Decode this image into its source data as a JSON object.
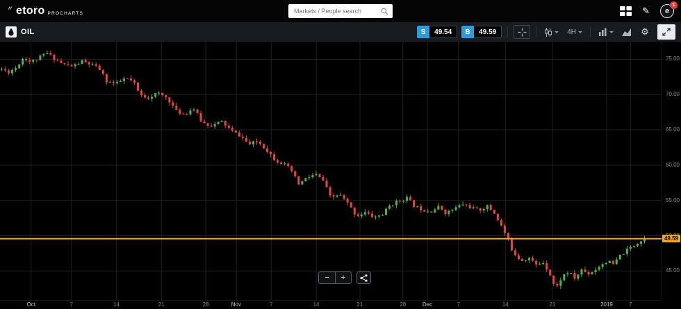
{
  "topbar": {
    "logo": "etoro",
    "logo_sub": "PROCHARTS",
    "search_placeholder": "Markets / People search",
    "notification_count": "1",
    "logo_mark": "e",
    "pencil_glyph": "✎"
  },
  "toolbar": {
    "symbol": "OIL",
    "sell_label": "S",
    "sell_price": "49.54",
    "buy_label": "B",
    "buy_price": "49.59",
    "interval": "4H",
    "gear_glyph": "⚙"
  },
  "zoom_controls": {
    "minus_label": "−",
    "plus_label": "+"
  },
  "chart_data": {
    "type": "candlestick",
    "symbol": "OIL",
    "interval": "4H",
    "ylim": [
      40.9,
      77.5
    ],
    "grid": true,
    "y_ticks": [
      {
        "p": 75,
        "label": "75.00"
      },
      {
        "p": 70,
        "label": "70.00"
      },
      {
        "p": 65,
        "label": "65.00"
      },
      {
        "p": 60,
        "label": "60.00"
      },
      {
        "p": 55,
        "label": "55.00"
      },
      {
        "p": 50,
        "label": "50.00"
      },
      {
        "p": 45,
        "label": "45.00"
      }
    ],
    "x_ticks": [
      {
        "label": "Oct",
        "t": 0.047
      },
      {
        "label": "7",
        "t": 0.108
      },
      {
        "label": "14",
        "t": 0.176
      },
      {
        "label": "21",
        "t": 0.244
      },
      {
        "label": "28",
        "t": 0.311
      },
      {
        "label": "Nov",
        "t": 0.357
      },
      {
        "label": "7",
        "t": 0.41
      },
      {
        "label": "14",
        "t": 0.478
      },
      {
        "label": "21",
        "t": 0.544
      },
      {
        "label": "28",
        "t": 0.609
      },
      {
        "label": "Dec",
        "t": 0.646
      },
      {
        "label": "7",
        "t": 0.693
      },
      {
        "label": "14",
        "t": 0.764
      },
      {
        "label": "21",
        "t": 0.835
      },
      {
        "label": "2019",
        "t": 0.917
      },
      {
        "label": "7",
        "t": 0.953
      }
    ],
    "current_price": 49.59,
    "current_price_label": "49.59",
    "hline_price": 49.59,
    "hline_color": "#f2a71b",
    "up_color": "#4caf50",
    "down_color": "#e0453f",
    "grid_color": "#1e2125",
    "candle_count": 185,
    "seed": 11,
    "price_path": [
      [
        0.0,
        73.6
      ],
      [
        0.01,
        73.2
      ],
      [
        0.022,
        73.8
      ],
      [
        0.034,
        75.3
      ],
      [
        0.045,
        74.6
      ],
      [
        0.058,
        75.2
      ],
      [
        0.07,
        75.9
      ],
      [
        0.082,
        75.1
      ],
      [
        0.095,
        74.3
      ],
      [
        0.11,
        74.0
      ],
      [
        0.125,
        74.7
      ],
      [
        0.14,
        74.2
      ],
      [
        0.152,
        73.6
      ],
      [
        0.163,
        71.9
      ],
      [
        0.178,
        71.5
      ],
      [
        0.192,
        72.3
      ],
      [
        0.205,
        71.8
      ],
      [
        0.215,
        69.9
      ],
      [
        0.228,
        69.6
      ],
      [
        0.242,
        70.2
      ],
      [
        0.258,
        69.5
      ],
      [
        0.272,
        67.6
      ],
      [
        0.285,
        67.2
      ],
      [
        0.298,
        68.1
      ],
      [
        0.312,
        66.0
      ],
      [
        0.328,
        65.6
      ],
      [
        0.342,
        66.2
      ],
      [
        0.358,
        64.8
      ],
      [
        0.372,
        64.1
      ],
      [
        0.385,
        62.9
      ],
      [
        0.398,
        63.4
      ],
      [
        0.412,
        62.2
      ],
      [
        0.425,
        60.8
      ],
      [
        0.438,
        60.2
      ],
      [
        0.45,
        59.3
      ],
      [
        0.462,
        57.3
      ],
      [
        0.475,
        58.2
      ],
      [
        0.488,
        58.7
      ],
      [
        0.5,
        57.8
      ],
      [
        0.512,
        55.3
      ],
      [
        0.525,
        55.9
      ],
      [
        0.538,
        54.6
      ],
      [
        0.552,
        52.8
      ],
      [
        0.565,
        53.3
      ],
      [
        0.578,
        52.6
      ],
      [
        0.592,
        53.0
      ],
      [
        0.605,
        54.4
      ],
      [
        0.618,
        54.9
      ],
      [
        0.63,
        55.4
      ],
      [
        0.642,
        54.2
      ],
      [
        0.655,
        53.7
      ],
      [
        0.668,
        53.5
      ],
      [
        0.68,
        54.1
      ],
      [
        0.692,
        53.2
      ],
      [
        0.705,
        53.9
      ],
      [
        0.718,
        54.5
      ],
      [
        0.73,
        54.0
      ],
      [
        0.742,
        53.6
      ],
      [
        0.755,
        54.2
      ],
      [
        0.765,
        53.4
      ],
      [
        0.775,
        51.8
      ],
      [
        0.785,
        49.9
      ],
      [
        0.795,
        47.8
      ],
      [
        0.808,
        46.5
      ],
      [
        0.82,
        46.9
      ],
      [
        0.832,
        45.8
      ],
      [
        0.842,
        46.3
      ],
      [
        0.852,
        44.8
      ],
      [
        0.862,
        42.4
      ],
      [
        0.872,
        44.3
      ],
      [
        0.882,
        44.9
      ],
      [
        0.892,
        43.9
      ],
      [
        0.902,
        45.2
      ],
      [
        0.912,
        44.6
      ],
      [
        0.922,
        45.1
      ],
      [
        0.932,
        45.9
      ],
      [
        0.942,
        46.4
      ],
      [
        0.952,
        45.9
      ],
      [
        0.962,
        47.2
      ],
      [
        0.972,
        47.9
      ],
      [
        0.982,
        48.6
      ],
      [
        0.992,
        49.2
      ],
      [
        1.0,
        49.59
      ]
    ]
  }
}
